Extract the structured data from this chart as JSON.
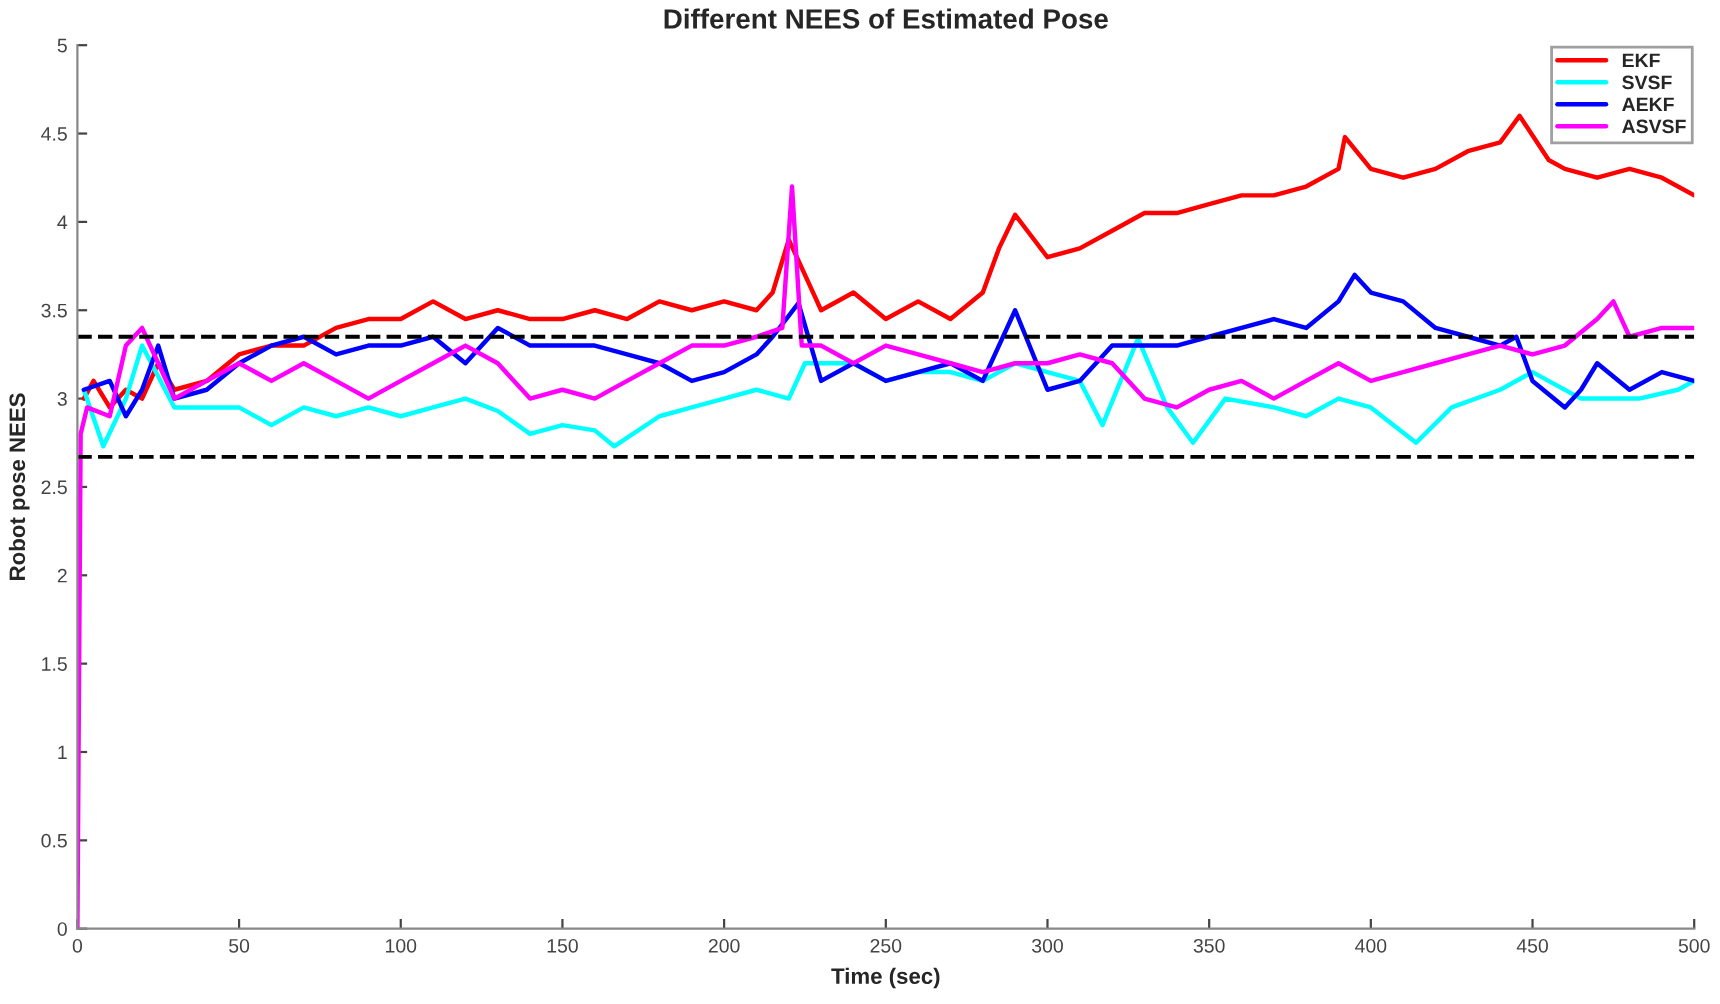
{
  "chart_data": {
    "type": "line",
    "title": "Different NEES of Estimated Pose",
    "xlabel": "Time (sec)",
    "ylabel": "Robot pose NEES",
    "xlim": [
      0,
      500
    ],
    "xticks": [
      0,
      50,
      100,
      150,
      200,
      250,
      300,
      350,
      400,
      450,
      500
    ],
    "ylim": [
      0,
      5
    ],
    "yticks": [
      0,
      0.5,
      1,
      1.5,
      2,
      2.5,
      3,
      3.5,
      4,
      4.5,
      5
    ],
    "grid": false,
    "legend": "top right",
    "line_style": "solid",
    "marker": "none",
    "ref_lines": [
      {
        "axis": "y",
        "value": 3.35,
        "color": "#000000",
        "line_style": "dashed"
      },
      {
        "axis": "y",
        "value": 2.67,
        "color": "#000000",
        "line_style": "dashed"
      }
    ],
    "series": [
      {
        "name": "EKF",
        "color": "#ff0000",
        "x": [
          2,
          5,
          10,
          15,
          20,
          25,
          30,
          40,
          50,
          60,
          70,
          80,
          90,
          100,
          110,
          120,
          130,
          140,
          150,
          160,
          170,
          180,
          190,
          200,
          210,
          215,
          220,
          225,
          230,
          240,
          250,
          260,
          270,
          280,
          285,
          290,
          300,
          310,
          320,
          330,
          340,
          350,
          360,
          370,
          380,
          390,
          392,
          400,
          410,
          420,
          430,
          440,
          446,
          455,
          460,
          470,
          480,
          490,
          500
        ],
        "values": [
          3.0,
          3.1,
          2.95,
          3.05,
          3.0,
          3.2,
          3.05,
          3.1,
          3.25,
          3.3,
          3.3,
          3.4,
          3.45,
          3.45,
          3.55,
          3.45,
          3.5,
          3.45,
          3.45,
          3.5,
          3.45,
          3.55,
          3.5,
          3.55,
          3.5,
          3.6,
          3.9,
          3.7,
          3.5,
          3.6,
          3.45,
          3.55,
          3.45,
          3.6,
          3.85,
          4.04,
          3.8,
          3.85,
          3.95,
          4.05,
          4.05,
          4.1,
          4.15,
          4.15,
          4.2,
          4.3,
          4.48,
          4.3,
          4.25,
          4.3,
          4.4,
          4.45,
          4.6,
          4.35,
          4.3,
          4.25,
          4.3,
          4.25,
          4.15
        ]
      },
      {
        "name": "SVSF",
        "color": "#00ffff",
        "x": [
          2,
          8,
          15,
          20,
          30,
          40,
          50,
          60,
          70,
          80,
          90,
          100,
          110,
          120,
          130,
          140,
          150,
          160,
          166,
          180,
          190,
          200,
          210,
          220,
          225,
          240,
          250,
          260,
          270,
          280,
          290,
          300,
          310,
          317,
          328,
          337,
          345,
          355,
          370,
          380,
          390,
          400,
          414,
          425,
          440,
          450,
          465,
          483,
          495,
          500
        ],
        "values": [
          3.05,
          2.73,
          3.0,
          3.3,
          2.95,
          2.95,
          2.95,
          2.85,
          2.95,
          2.9,
          2.95,
          2.9,
          2.95,
          3.0,
          2.93,
          2.8,
          2.85,
          2.82,
          2.73,
          2.9,
          2.95,
          3.0,
          3.05,
          3.0,
          3.2,
          3.2,
          3.1,
          3.15,
          3.15,
          3.1,
          3.2,
          3.15,
          3.1,
          2.85,
          3.34,
          2.95,
          2.75,
          3.0,
          2.95,
          2.9,
          3.0,
          2.95,
          2.75,
          2.95,
          3.05,
          3.15,
          3.0,
          3.0,
          3.05,
          3.1
        ]
      },
      {
        "name": "AEKF",
        "color": "#0000ff",
        "x": [
          2,
          10,
          15,
          20,
          25,
          30,
          40,
          50,
          60,
          70,
          80,
          90,
          100,
          110,
          120,
          130,
          140,
          150,
          160,
          170,
          180,
          190,
          200,
          210,
          215,
          223,
          230,
          240,
          250,
          260,
          270,
          280,
          290,
          300,
          310,
          320,
          330,
          340,
          350,
          360,
          370,
          380,
          390,
          395,
          400,
          410,
          420,
          430,
          440,
          445,
          450,
          460,
          465,
          470,
          480,
          490,
          500
        ],
        "values": [
          3.05,
          3.1,
          2.9,
          3.05,
          3.3,
          3.0,
          3.05,
          3.2,
          3.3,
          3.35,
          3.25,
          3.3,
          3.3,
          3.35,
          3.2,
          3.4,
          3.3,
          3.3,
          3.3,
          3.25,
          3.2,
          3.1,
          3.15,
          3.25,
          3.35,
          3.54,
          3.1,
          3.2,
          3.1,
          3.15,
          3.2,
          3.1,
          3.5,
          3.05,
          3.1,
          3.3,
          3.3,
          3.3,
          3.35,
          3.4,
          3.45,
          3.4,
          3.55,
          3.7,
          3.6,
          3.55,
          3.4,
          3.35,
          3.3,
          3.35,
          3.1,
          2.95,
          3.05,
          3.2,
          3.05,
          3.15,
          3.1
        ]
      },
      {
        "name": "ASVSF",
        "color": "#ff00ff",
        "x": [
          0,
          1,
          3,
          10,
          15,
          20,
          25,
          30,
          40,
          50,
          60,
          70,
          80,
          90,
          100,
          110,
          120,
          130,
          140,
          150,
          160,
          170,
          180,
          190,
          200,
          210,
          218,
          221,
          224,
          230,
          240,
          250,
          260,
          270,
          280,
          290,
          300,
          310,
          320,
          330,
          340,
          350,
          360,
          370,
          380,
          390,
          400,
          410,
          420,
          430,
          440,
          450,
          460,
          470,
          475,
          480,
          490,
          500
        ],
        "values": [
          0,
          2.8,
          2.95,
          2.9,
          3.3,
          3.4,
          3.2,
          3.0,
          3.1,
          3.2,
          3.1,
          3.2,
          3.1,
          3.0,
          3.1,
          3.2,
          3.3,
          3.2,
          3.0,
          3.05,
          3.0,
          3.1,
          3.2,
          3.3,
          3.3,
          3.35,
          3.4,
          4.2,
          3.3,
          3.3,
          3.2,
          3.3,
          3.25,
          3.2,
          3.15,
          3.2,
          3.2,
          3.25,
          3.2,
          3.0,
          2.95,
          3.05,
          3.1,
          3.0,
          3.1,
          3.2,
          3.1,
          3.15,
          3.2,
          3.25,
          3.3,
          3.25,
          3.3,
          3.45,
          3.55,
          3.35,
          3.4,
          3.4
        ]
      }
    ]
  }
}
